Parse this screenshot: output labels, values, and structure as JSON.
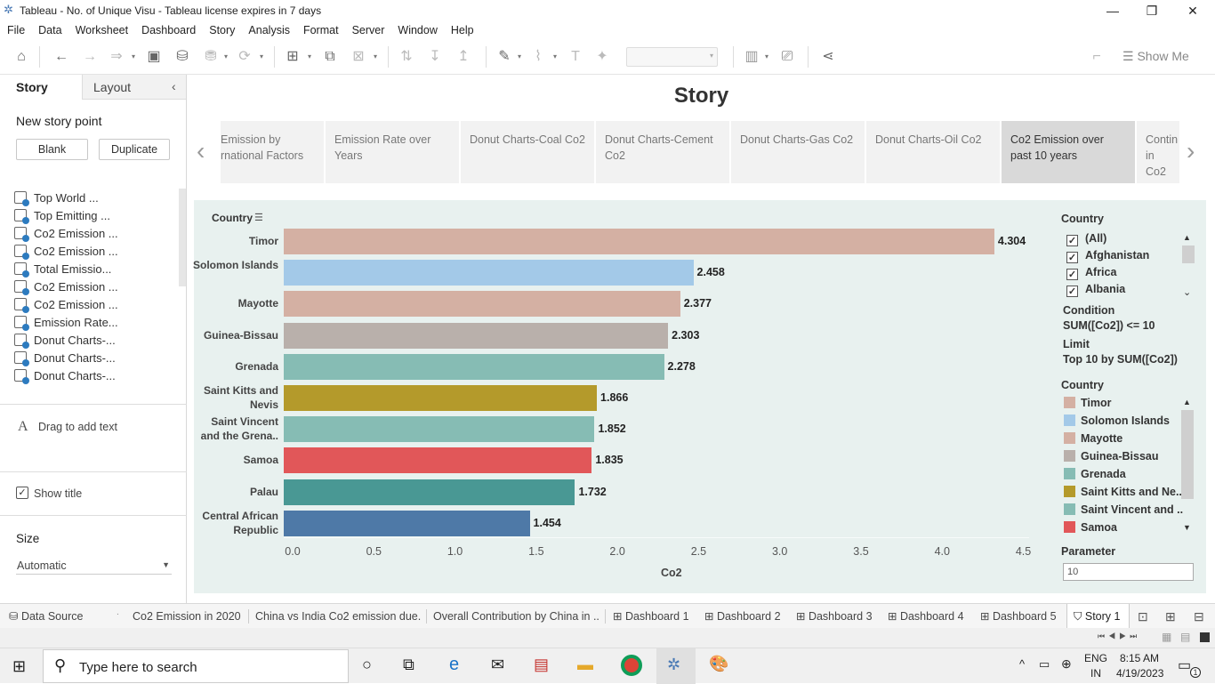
{
  "window": {
    "title": "Tableau - No. of Unique Visu - Tableau license expires in 7 days"
  },
  "menu": [
    "File",
    "Data",
    "Worksheet",
    "Dashboard",
    "Story",
    "Analysis",
    "Format",
    "Server",
    "Window",
    "Help"
  ],
  "toolbar": {
    "show_me": "Show Me"
  },
  "left_panel": {
    "tab_story": "Story",
    "tab_layout": "Layout",
    "new_story_point": "New story point",
    "blank": "Blank",
    "duplicate": "Duplicate",
    "sheets": [
      "Top World ...",
      "Top Emitting ...",
      "Co2 Emission ...",
      "Co2 Emission ...",
      "Total Emissio...",
      "Co2 Emission ...",
      "Co2 Emission ...",
      "Emission Rate...",
      "Donut Charts-...",
      "Donut Charts-...",
      "Donut Charts-..."
    ],
    "drag_text": "Drag to add text",
    "show_title": "Show title",
    "size_label": "Size",
    "size_value": "Automatic"
  },
  "story": {
    "title": "Story",
    "points": [
      {
        "label": "Emission by rnational Factors"
      },
      {
        "label": "Emission Rate over Years"
      },
      {
        "label": "Donut Charts-Coal Co2"
      },
      {
        "label": "Donut Charts-Cement Co2"
      },
      {
        "label": "Donut Charts-Gas Co2"
      },
      {
        "label": "Donut Charts-Oil Co2"
      },
      {
        "label": "Co2 Emission over past 10 years"
      },
      {
        "label": "Contin in Co2"
      }
    ]
  },
  "chart_data": {
    "type": "bar",
    "orientation": "horizontal",
    "row_header": "Country",
    "xlabel": "Co2",
    "xlim": [
      0,
      4.5
    ],
    "xticks": [
      "0.0",
      "0.5",
      "1.0",
      "1.5",
      "2.0",
      "2.5",
      "3.0",
      "3.5",
      "4.0",
      "4.5"
    ],
    "categories": [
      "Timor",
      "Solomon Islands",
      "Mayotte",
      "Guinea-Bissau",
      "Grenada",
      "Saint Kitts and Nevis",
      "Saint Vincent and the Grena..",
      "Samoa",
      "Palau",
      "Central African Republic"
    ],
    "values": [
      4.304,
      2.458,
      2.377,
      2.303,
      2.278,
      1.866,
      1.852,
      1.835,
      1.732,
      1.454
    ],
    "value_labels": [
      "4.304",
      "2.458",
      "2.377",
      "2.303",
      "2.278",
      "1.866",
      "1.852",
      "1.835",
      "1.732",
      "1.454"
    ],
    "colors": [
      "#d4b0a3",
      "#a3c9e8",
      "#d4b0a3",
      "#b9b0ab",
      "#86bcb4",
      "#b49a2b",
      "#86bcb4",
      "#e15759",
      "#499894",
      "#4e79a7"
    ]
  },
  "filter": {
    "title": "Country",
    "items": [
      "(All)",
      "Afghanistan",
      "Africa",
      "Albania"
    ],
    "condition_label": "Condition",
    "condition_value": "SUM([Co2]) <= 10",
    "limit_label": "Limit",
    "limit_value": "Top 10 by SUM([Co2])"
  },
  "legend": {
    "title": "Country",
    "items": [
      {
        "label": "Timor",
        "color": "#d4b0a3"
      },
      {
        "label": "Solomon Islands",
        "color": "#a3c9e8"
      },
      {
        "label": "Mayotte",
        "color": "#d4b0a3"
      },
      {
        "label": "Guinea-Bissau",
        "color": "#b9b0ab"
      },
      {
        "label": "Grenada",
        "color": "#86bcb4"
      },
      {
        "label": "Saint Kitts and Ne..",
        "color": "#b49a2b"
      },
      {
        "label": "Saint Vincent and ..",
        "color": "#86bcb4"
      },
      {
        "label": "Samoa",
        "color": "#e15759"
      }
    ]
  },
  "parameter": {
    "title": "Parameter",
    "value": "10"
  },
  "bottom_tabs": [
    "Data Source",
    "Co2 Emission in 2020",
    "China vs India Co2 emission due...",
    "Overall Contribution by China in ...",
    "Dashboard 1",
    "Dashboard 2",
    "Dashboard 3",
    "Dashboard 4",
    "Dashboard 5",
    "Story 1"
  ],
  "taskbar": {
    "search_placeholder": "Type here to search",
    "lang1": "ENG",
    "lang2": "IN",
    "time": "8:15 AM",
    "date": "4/19/2023",
    "notif": "1"
  }
}
